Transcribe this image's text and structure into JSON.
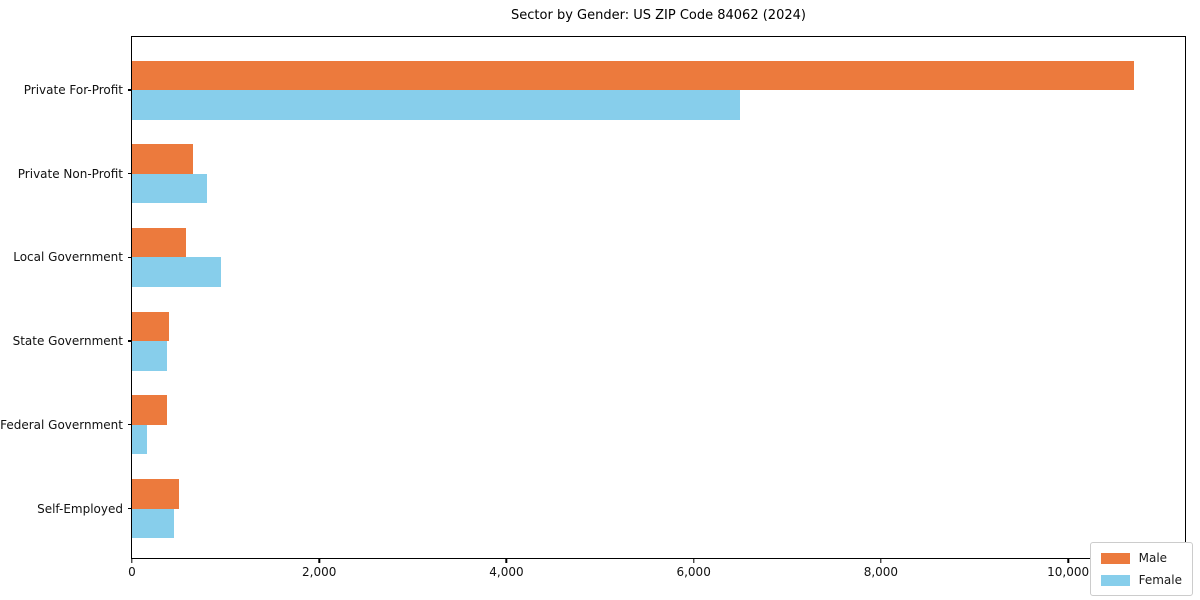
{
  "title": "Sector by Gender: US ZIP Code 84062 (2024)",
  "legend": {
    "position": "lower right",
    "items": [
      {
        "label": "Male",
        "color": "#EC7A3D"
      },
      {
        "label": "Female",
        "color": "#87CEEB"
      }
    ]
  },
  "chart_data": {
    "type": "bar",
    "orientation": "horizontal",
    "title": "Sector by Gender: US ZIP Code 84062 (2024)",
    "xlabel": "",
    "ylabel": "",
    "categories": [
      "Private For-Profit",
      "Private Non-Profit",
      "Local Government",
      "State Government",
      "Federal Government",
      "Self-Employed"
    ],
    "series": [
      {
        "name": "Male",
        "color": "#EC7A3D",
        "values": [
          10700,
          650,
          580,
          390,
          370,
          500
        ]
      },
      {
        "name": "Female",
        "color": "#87CEEB",
        "values": [
          6500,
          800,
          950,
          370,
          160,
          450
        ]
      }
    ],
    "xlim": [
      0,
      11270
    ],
    "xticks": [
      0,
      2000,
      4000,
      6000,
      8000,
      10000
    ],
    "xtick_labels": [
      "0",
      "2,000",
      "4,000",
      "6,000",
      "8,000",
      "10,000"
    ],
    "grid": false,
    "legend_position": "lower right"
  }
}
